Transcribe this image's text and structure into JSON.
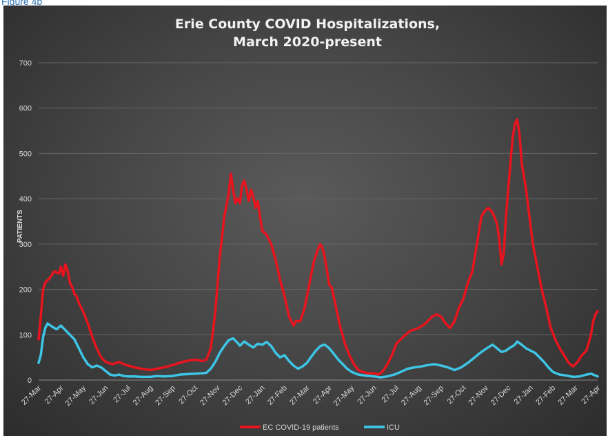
{
  "caption": "Figure 4b",
  "chart_data": {
    "type": "line",
    "title_line1": "Erie County COVID Hospitalizations,",
    "title_line2": "March 2020-present",
    "ylabel": "PATIENTS",
    "ylim": [
      0,
      700
    ],
    "yticks": [
      0,
      100,
      200,
      300,
      400,
      500,
      600,
      700
    ],
    "grid": true,
    "legend_position": "bottom",
    "xtick_labels": [
      "27-Mar",
      "27-Apr",
      "27-May",
      "27-Jun",
      "27-Jul",
      "27-Aug",
      "27-Sep",
      "27-Oct",
      "27-Nov",
      "27-Dec",
      "27-Jan",
      "27-Feb",
      "27-Mar",
      "27-Apr",
      "27-May",
      "27-Jun",
      "27-Jul",
      "27-Aug",
      "27-Sep",
      "27-Oct",
      "27-Nov",
      "27-Dec",
      "27-Jan",
      "27-Feb",
      "27-Mar",
      "27-Apr"
    ],
    "series": [
      {
        "name": "EC COVID-19 patients",
        "color": "#e8141e",
        "points": [
          [
            0.0,
            90
          ],
          [
            0.1,
            140
          ],
          [
            0.2,
            200
          ],
          [
            0.3,
            215
          ],
          [
            0.5,
            225
          ],
          [
            0.7,
            240
          ],
          [
            0.9,
            235
          ],
          [
            1.0,
            250
          ],
          [
            1.1,
            230
          ],
          [
            1.2,
            255
          ],
          [
            1.3,
            240
          ],
          [
            1.4,
            215
          ],
          [
            1.5,
            205
          ],
          [
            1.6,
            190
          ],
          [
            1.7,
            185
          ],
          [
            1.8,
            170
          ],
          [
            2.0,
            150
          ],
          [
            2.2,
            125
          ],
          [
            2.4,
            95
          ],
          [
            2.6,
            70
          ],
          [
            2.8,
            50
          ],
          [
            3.0,
            40
          ],
          [
            3.3,
            35
          ],
          [
            3.6,
            40
          ],
          [
            3.8,
            35
          ],
          [
            4.0,
            32
          ],
          [
            4.3,
            28
          ],
          [
            4.6,
            25
          ],
          [
            5.0,
            22
          ],
          [
            5.3,
            25
          ],
          [
            5.6,
            28
          ],
          [
            6.0,
            33
          ],
          [
            6.3,
            38
          ],
          [
            6.6,
            42
          ],
          [
            7.0,
            45
          ],
          [
            7.3,
            42
          ],
          [
            7.5,
            45
          ],
          [
            7.7,
            70
          ],
          [
            7.9,
            150
          ],
          [
            8.1,
            270
          ],
          [
            8.3,
            360
          ],
          [
            8.5,
            410
          ],
          [
            8.6,
            455
          ],
          [
            8.7,
            420
          ],
          [
            8.8,
            390
          ],
          [
            8.9,
            400
          ],
          [
            9.0,
            390
          ],
          [
            9.1,
            430
          ],
          [
            9.2,
            440
          ],
          [
            9.3,
            420
          ],
          [
            9.4,
            395
          ],
          [
            9.5,
            420
          ],
          [
            9.6,
            405
          ],
          [
            9.7,
            380
          ],
          [
            9.8,
            395
          ],
          [
            9.9,
            360
          ],
          [
            10.0,
            330
          ],
          [
            10.2,
            320
          ],
          [
            10.4,
            300
          ],
          [
            10.6,
            265
          ],
          [
            10.8,
            220
          ],
          [
            11.0,
            185
          ],
          [
            11.2,
            140
          ],
          [
            11.4,
            120
          ],
          [
            11.5,
            130
          ],
          [
            11.7,
            130
          ],
          [
            11.9,
            160
          ],
          [
            12.1,
            210
          ],
          [
            12.3,
            260
          ],
          [
            12.5,
            290
          ],
          [
            12.6,
            300
          ],
          [
            12.7,
            290
          ],
          [
            12.8,
            270
          ],
          [
            12.9,
            240
          ],
          [
            13.0,
            210
          ],
          [
            13.1,
            205
          ],
          [
            13.3,
            160
          ],
          [
            13.5,
            115
          ],
          [
            13.7,
            80
          ],
          [
            13.9,
            55
          ],
          [
            14.1,
            35
          ],
          [
            14.3,
            22
          ],
          [
            14.5,
            18
          ],
          [
            14.7,
            15
          ],
          [
            15.0,
            15
          ],
          [
            15.2,
            12
          ],
          [
            15.4,
            20
          ],
          [
            15.6,
            35
          ],
          [
            15.8,
            55
          ],
          [
            16.0,
            80
          ],
          [
            16.3,
            95
          ],
          [
            16.6,
            108
          ],
          [
            17.0,
            115
          ],
          [
            17.3,
            125
          ],
          [
            17.6,
            140
          ],
          [
            17.8,
            145
          ],
          [
            18.0,
            140
          ],
          [
            18.2,
            125
          ],
          [
            18.4,
            115
          ],
          [
            18.6,
            130
          ],
          [
            18.8,
            160
          ],
          [
            19.0,
            180
          ],
          [
            19.2,
            215
          ],
          [
            19.4,
            240
          ],
          [
            19.6,
            300
          ],
          [
            19.7,
            330
          ],
          [
            19.8,
            360
          ],
          [
            19.9,
            370
          ],
          [
            20.1,
            380
          ],
          [
            20.3,
            370
          ],
          [
            20.5,
            345
          ],
          [
            20.6,
            310
          ],
          [
            20.7,
            255
          ],
          [
            20.8,
            280
          ],
          [
            20.9,
            360
          ],
          [
            21.0,
            420
          ],
          [
            21.1,
            480
          ],
          [
            21.2,
            535
          ],
          [
            21.3,
            565
          ],
          [
            21.4,
            575
          ],
          [
            21.5,
            545
          ],
          [
            21.6,
            480
          ],
          [
            21.7,
            450
          ],
          [
            21.8,
            420
          ],
          [
            21.9,
            380
          ],
          [
            22.0,
            340
          ],
          [
            22.1,
            300
          ],
          [
            22.3,
            250
          ],
          [
            22.5,
            200
          ],
          [
            22.7,
            160
          ],
          [
            22.9,
            115
          ],
          [
            23.1,
            90
          ],
          [
            23.3,
            70
          ],
          [
            23.5,
            55
          ],
          [
            23.7,
            38
          ],
          [
            23.9,
            30
          ],
          [
            24.1,
            40
          ],
          [
            24.3,
            55
          ],
          [
            24.5,
            65
          ],
          [
            24.7,
            100
          ],
          [
            24.8,
            130
          ],
          [
            24.9,
            145
          ],
          [
            25.0,
            152
          ]
        ]
      },
      {
        "name": "ICU",
        "color": "#3ec5e6",
        "points": [
          [
            0.0,
            38
          ],
          [
            0.1,
            55
          ],
          [
            0.2,
            95
          ],
          [
            0.3,
            115
          ],
          [
            0.4,
            125
          ],
          [
            0.6,
            118
          ],
          [
            0.8,
            112
          ],
          [
            1.0,
            120
          ],
          [
            1.2,
            110
          ],
          [
            1.4,
            100
          ],
          [
            1.6,
            90
          ],
          [
            1.8,
            70
          ],
          [
            2.0,
            50
          ],
          [
            2.2,
            35
          ],
          [
            2.4,
            28
          ],
          [
            2.6,
            32
          ],
          [
            2.8,
            28
          ],
          [
            3.0,
            20
          ],
          [
            3.2,
            12
          ],
          [
            3.4,
            10
          ],
          [
            3.6,
            12
          ],
          [
            3.8,
            9
          ],
          [
            4.0,
            8
          ],
          [
            4.3,
            8
          ],
          [
            4.6,
            7
          ],
          [
            5.0,
            7
          ],
          [
            5.3,
            9
          ],
          [
            5.6,
            8
          ],
          [
            6.0,
            9
          ],
          [
            6.3,
            12
          ],
          [
            6.6,
            13
          ],
          [
            7.0,
            14
          ],
          [
            7.3,
            15
          ],
          [
            7.5,
            16
          ],
          [
            7.7,
            25
          ],
          [
            7.9,
            40
          ],
          [
            8.1,
            60
          ],
          [
            8.3,
            75
          ],
          [
            8.5,
            88
          ],
          [
            8.7,
            92
          ],
          [
            8.9,
            82
          ],
          [
            9.0,
            76
          ],
          [
            9.2,
            85
          ],
          [
            9.4,
            78
          ],
          [
            9.6,
            72
          ],
          [
            9.8,
            80
          ],
          [
            10.0,
            78
          ],
          [
            10.2,
            84
          ],
          [
            10.4,
            75
          ],
          [
            10.6,
            60
          ],
          [
            10.8,
            50
          ],
          [
            11.0,
            55
          ],
          [
            11.2,
            42
          ],
          [
            11.4,
            32
          ],
          [
            11.6,
            25
          ],
          [
            11.8,
            30
          ],
          [
            12.0,
            38
          ],
          [
            12.2,
            52
          ],
          [
            12.4,
            65
          ],
          [
            12.6,
            75
          ],
          [
            12.8,
            78
          ],
          [
            13.0,
            70
          ],
          [
            13.2,
            58
          ],
          [
            13.4,
            45
          ],
          [
            13.6,
            35
          ],
          [
            13.8,
            25
          ],
          [
            14.0,
            18
          ],
          [
            14.3,
            12
          ],
          [
            14.6,
            10
          ],
          [
            15.0,
            8
          ],
          [
            15.3,
            6
          ],
          [
            15.6,
            8
          ],
          [
            15.9,
            12
          ],
          [
            16.2,
            18
          ],
          [
            16.5,
            25
          ],
          [
            16.8,
            28
          ],
          [
            17.1,
            30
          ],
          [
            17.4,
            33
          ],
          [
            17.7,
            35
          ],
          [
            18.0,
            32
          ],
          [
            18.3,
            28
          ],
          [
            18.6,
            22
          ],
          [
            18.9,
            28
          ],
          [
            19.2,
            38
          ],
          [
            19.5,
            50
          ],
          [
            19.8,
            62
          ],
          [
            20.1,
            72
          ],
          [
            20.3,
            78
          ],
          [
            20.5,
            70
          ],
          [
            20.7,
            62
          ],
          [
            20.9,
            65
          ],
          [
            21.1,
            72
          ],
          [
            21.3,
            78
          ],
          [
            21.4,
            85
          ],
          [
            21.6,
            78
          ],
          [
            21.8,
            70
          ],
          [
            22.0,
            65
          ],
          [
            22.2,
            60
          ],
          [
            22.4,
            50
          ],
          [
            22.6,
            40
          ],
          [
            22.8,
            28
          ],
          [
            23.0,
            18
          ],
          [
            23.3,
            12
          ],
          [
            23.6,
            10
          ],
          [
            23.9,
            7
          ],
          [
            24.2,
            8
          ],
          [
            24.5,
            12
          ],
          [
            24.7,
            14
          ],
          [
            24.9,
            10
          ],
          [
            25.0,
            8
          ]
        ]
      }
    ]
  }
}
